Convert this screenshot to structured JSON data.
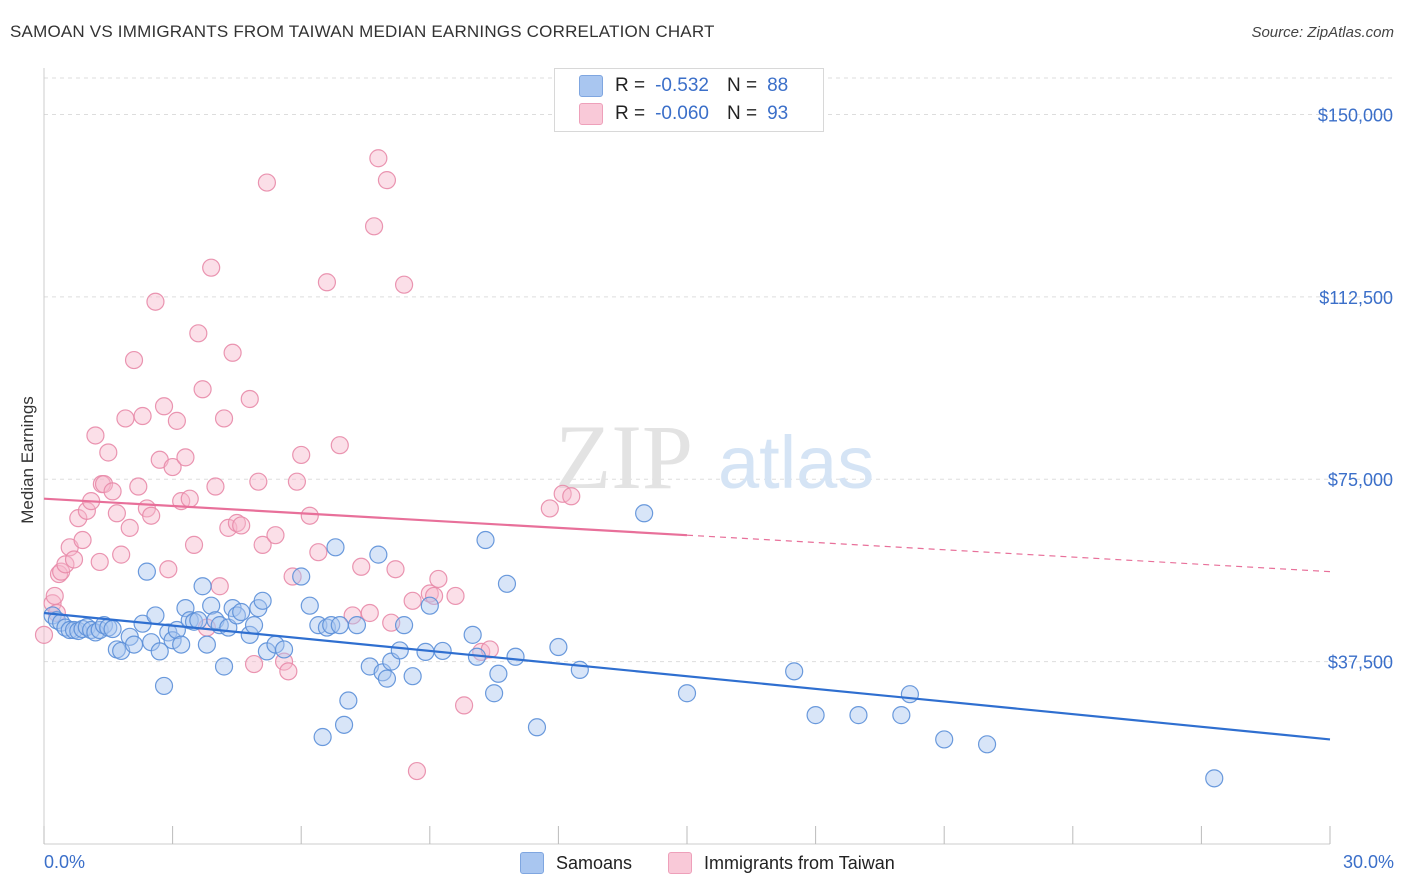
{
  "header": {
    "title": "SAMOAN VS IMMIGRANTS FROM TAIWAN MEDIAN EARNINGS CORRELATION CHART",
    "source": "Source: ZipAtlas.com"
  },
  "watermark": {
    "zip": "ZIP",
    "atlas": "atlas"
  },
  "legend_top": {
    "rows": [
      {
        "r_label": "R =",
        "r_value": "-0.532",
        "n_label": "N =",
        "n_value": "88",
        "color": "#a9c6f0"
      },
      {
        "r_label": "R =",
        "r_value": "-0.060",
        "n_label": "N =",
        "n_value": "93",
        "color": "#f6b8cc"
      }
    ]
  },
  "legend_bottom": {
    "items": [
      {
        "label": "Samoans",
        "color": "#a9c6f0"
      },
      {
        "label": "Immigrants from Taiwan",
        "color": "#f6b8cc"
      }
    ]
  },
  "axes": {
    "ylabel": "Median Earnings",
    "x_min_label": "0.0%",
    "x_max_label": "30.0%",
    "y_ticks": [
      "$150,000",
      "$112,500",
      "$75,000",
      "$37,500"
    ]
  },
  "colors": {
    "samoan_fill": "#a9c6f0",
    "samoan_stroke": "#5b8fd8",
    "samoan_line": "#2f6fd0",
    "taiwan_fill": "#f6b8cc",
    "taiwan_stroke": "#e88aa8",
    "taiwan_line": "#e8709a",
    "tick_label": "#3b6fc9",
    "grid": "#dddddd"
  },
  "chart_data": {
    "type": "scatter",
    "xlim": [
      0,
      30
    ],
    "ylim": [
      0,
      157500
    ],
    "y_ticks": [
      37500,
      75000,
      112500,
      150000
    ],
    "x_ticks": [
      0,
      3,
      6,
      9,
      12,
      15,
      18,
      21,
      24,
      27,
      30
    ],
    "grid": true,
    "series": [
      {
        "name": "Samoans",
        "trend": {
          "x": [
            0,
            30
          ],
          "y": [
            47500,
            21500
          ]
        },
        "points": [
          [
            0.2,
            47000
          ],
          [
            0.3,
            46000
          ],
          [
            0.4,
            45500
          ],
          [
            0.5,
            44500
          ],
          [
            0.6,
            44000
          ],
          [
            0.7,
            44000
          ],
          [
            0.8,
            43800
          ],
          [
            0.9,
            44200
          ],
          [
            1.0,
            44600
          ],
          [
            1.1,
            44000
          ],
          [
            1.2,
            43500
          ],
          [
            1.3,
            44000
          ],
          [
            1.4,
            45000
          ],
          [
            1.5,
            44500
          ],
          [
            1.6,
            44200
          ],
          [
            1.7,
            40000
          ],
          [
            1.8,
            39700
          ],
          [
            2.0,
            42600
          ],
          [
            2.1,
            41000
          ],
          [
            2.3,
            45300
          ],
          [
            2.4,
            56000
          ],
          [
            2.5,
            41500
          ],
          [
            2.6,
            47000
          ],
          [
            2.7,
            39600
          ],
          [
            2.8,
            32500
          ],
          [
            2.9,
            43500
          ],
          [
            3.0,
            41900
          ],
          [
            3.1,
            44000
          ],
          [
            3.2,
            41000
          ],
          [
            3.3,
            48500
          ],
          [
            3.4,
            46000
          ],
          [
            3.5,
            45700
          ],
          [
            3.6,
            46000
          ],
          [
            3.7,
            53000
          ],
          [
            3.8,
            41000
          ],
          [
            3.9,
            49000
          ],
          [
            4.0,
            46000
          ],
          [
            4.1,
            45000
          ],
          [
            4.2,
            36500
          ],
          [
            4.3,
            44500
          ],
          [
            4.4,
            48500
          ],
          [
            4.5,
            47000
          ],
          [
            4.6,
            47700
          ],
          [
            4.8,
            43000
          ],
          [
            4.9,
            45000
          ],
          [
            5.0,
            48500
          ],
          [
            5.1,
            50000
          ],
          [
            5.2,
            39600
          ],
          [
            5.4,
            41000
          ],
          [
            5.6,
            40000
          ],
          [
            6.0,
            55000
          ],
          [
            6.2,
            49000
          ],
          [
            6.4,
            45000
          ],
          [
            6.5,
            22000
          ],
          [
            6.6,
            44500
          ],
          [
            6.7,
            45000
          ],
          [
            6.8,
            61000
          ],
          [
            6.9,
            45000
          ],
          [
            7.0,
            24500
          ],
          [
            7.1,
            29500
          ],
          [
            7.3,
            45000
          ],
          [
            7.6,
            36500
          ],
          [
            7.8,
            59500
          ],
          [
            7.9,
            35300
          ],
          [
            8.0,
            34000
          ],
          [
            8.1,
            37500
          ],
          [
            8.3,
            39800
          ],
          [
            8.4,
            45000
          ],
          [
            8.6,
            34500
          ],
          [
            8.9,
            39500
          ],
          [
            9.0,
            49000
          ],
          [
            9.3,
            39700
          ],
          [
            10.0,
            43000
          ],
          [
            10.1,
            38500
          ],
          [
            10.3,
            62500
          ],
          [
            10.5,
            31000
          ],
          [
            10.6,
            35000
          ],
          [
            10.8,
            53500
          ],
          [
            11.0,
            38500
          ],
          [
            11.5,
            24000
          ],
          [
            12.0,
            40500
          ],
          [
            12.5,
            35800
          ],
          [
            14.0,
            68000
          ],
          [
            15.0,
            31000
          ],
          [
            17.5,
            35500
          ],
          [
            18.0,
            26500
          ],
          [
            19.0,
            26500
          ],
          [
            20.0,
            26500
          ],
          [
            20.2,
            30800
          ],
          [
            21.0,
            21500
          ],
          [
            22.0,
            20500
          ],
          [
            27.3,
            13500
          ]
        ]
      },
      {
        "name": "Immigrants from Taiwan",
        "trend": {
          "x": [
            0,
            15
          ],
          "y": [
            71000,
            63500
          ]
        },
        "trend_dashed": {
          "x": [
            15,
            30
          ],
          "y": [
            63500,
            56000
          ]
        },
        "points": [
          [
            0.0,
            43000
          ],
          [
            0.2,
            49500
          ],
          [
            0.25,
            51000
          ],
          [
            0.3,
            47500
          ],
          [
            0.35,
            55500
          ],
          [
            0.4,
            56000
          ],
          [
            0.5,
            57500
          ],
          [
            0.6,
            61000
          ],
          [
            0.7,
            58500
          ],
          [
            0.8,
            67000
          ],
          [
            0.9,
            62500
          ],
          [
            1.0,
            68500
          ],
          [
            1.1,
            70500
          ],
          [
            1.2,
            84000
          ],
          [
            1.3,
            58000
          ],
          [
            1.35,
            74000
          ],
          [
            1.4,
            74000
          ],
          [
            1.5,
            80500
          ],
          [
            1.6,
            72500
          ],
          [
            1.7,
            68000
          ],
          [
            1.8,
            59500
          ],
          [
            1.9,
            87500
          ],
          [
            2.0,
            65000
          ],
          [
            2.1,
            99500
          ],
          [
            2.2,
            73500
          ],
          [
            2.3,
            88000
          ],
          [
            2.4,
            69000
          ],
          [
            2.5,
            67500
          ],
          [
            2.6,
            111500
          ],
          [
            2.7,
            79000
          ],
          [
            2.8,
            90000
          ],
          [
            2.9,
            56500
          ],
          [
            3.0,
            77500
          ],
          [
            3.1,
            87000
          ],
          [
            3.2,
            70500
          ],
          [
            3.3,
            79500
          ],
          [
            3.4,
            71000
          ],
          [
            3.5,
            61500
          ],
          [
            3.6,
            105000
          ],
          [
            3.7,
            93500
          ],
          [
            3.8,
            44500
          ],
          [
            3.9,
            118500
          ],
          [
            4.0,
            73500
          ],
          [
            4.1,
            53000
          ],
          [
            4.2,
            87500
          ],
          [
            4.3,
            65000
          ],
          [
            4.4,
            101000
          ],
          [
            4.5,
            66000
          ],
          [
            4.6,
            65500
          ],
          [
            4.8,
            91500
          ],
          [
            4.9,
            37000
          ],
          [
            5.0,
            74500
          ],
          [
            5.1,
            61500
          ],
          [
            5.2,
            136000
          ],
          [
            5.4,
            63500
          ],
          [
            5.6,
            37500
          ],
          [
            5.7,
            35500
          ],
          [
            5.8,
            55000
          ],
          [
            5.9,
            74500
          ],
          [
            6.0,
            80000
          ],
          [
            6.2,
            67500
          ],
          [
            6.4,
            60000
          ],
          [
            6.6,
            115500
          ],
          [
            6.9,
            82000
          ],
          [
            7.2,
            47000
          ],
          [
            7.4,
            57000
          ],
          [
            7.6,
            47500
          ],
          [
            7.7,
            127000
          ],
          [
            7.8,
            141000
          ],
          [
            8.0,
            136500
          ],
          [
            8.1,
            45500
          ],
          [
            8.2,
            56500
          ],
          [
            8.4,
            115000
          ],
          [
            8.6,
            50000
          ],
          [
            8.7,
            15000
          ],
          [
            9.0,
            51500
          ],
          [
            9.1,
            51000
          ],
          [
            9.2,
            54500
          ],
          [
            9.6,
            51000
          ],
          [
            9.8,
            28500
          ],
          [
            10.2,
            39500
          ],
          [
            10.4,
            40000
          ],
          [
            11.8,
            69000
          ],
          [
            12.1,
            72000
          ],
          [
            12.3,
            71500
          ]
        ]
      }
    ]
  }
}
